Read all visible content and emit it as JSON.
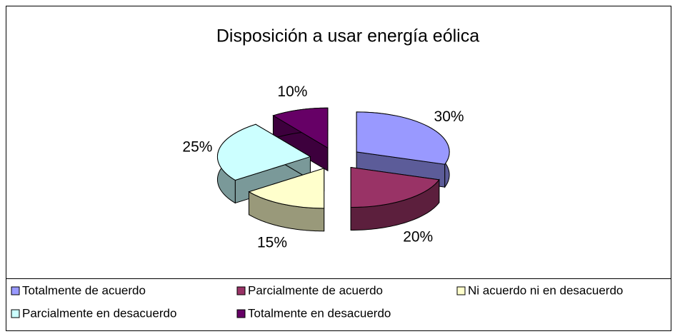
{
  "chart_data": {
    "type": "pie",
    "title": "Disposición a usar energía eólica",
    "categories": [
      "Totalmente de acuerdo",
      "Parcialmente de acuerdo",
      "Ni acuerdo ni en desacuerdo",
      "Parcialmente en desacuerdo",
      "Totalmente en desacuerdo"
    ],
    "values": [
      30,
      20,
      15,
      25,
      10
    ],
    "value_labels": [
      "30%",
      "20%",
      "15%",
      "25%",
      "10%"
    ],
    "colors": [
      "#9999ff",
      "#993366",
      "#ffffcc",
      "#ccffff",
      "#660066"
    ],
    "legend": "bottom"
  }
}
